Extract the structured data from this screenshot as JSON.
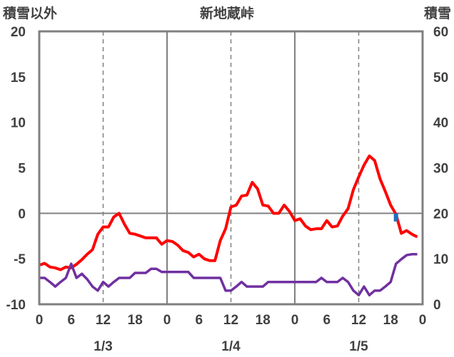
{
  "chart_data": {
    "type": "line",
    "title": "新地蔵峠",
    "ylabel_left": "積雪以外",
    "ylabel_right": "積雪",
    "ylim_left": [
      -10,
      20
    ],
    "ylim_right": [
      0,
      60
    ],
    "yticks_left": [
      20,
      15,
      10,
      5,
      0,
      -5,
      -10
    ],
    "yticks_right": [
      60,
      50,
      40,
      30,
      20,
      10,
      0
    ],
    "xlim_hours": [
      0,
      72
    ],
    "xticks": [
      {
        "hour": 0,
        "label": "0"
      },
      {
        "hour": 6,
        "label": "6"
      },
      {
        "hour": 12,
        "label": "12"
      },
      {
        "hour": 18,
        "label": "18"
      },
      {
        "hour": 24,
        "label": "0"
      },
      {
        "hour": 30,
        "label": "6"
      },
      {
        "hour": 36,
        "label": "12"
      },
      {
        "hour": 42,
        "label": "18"
      },
      {
        "hour": 48,
        "label": "0"
      },
      {
        "hour": 54,
        "label": "6"
      },
      {
        "hour": 60,
        "label": "12"
      },
      {
        "hour": 66,
        "label": "18"
      },
      {
        "hour": 72,
        "label": "0"
      }
    ],
    "date_labels": [
      {
        "hour": 12,
        "label": "1/3"
      },
      {
        "hour": 36,
        "label": "1/4"
      },
      {
        "hour": 60,
        "label": "1/5"
      }
    ],
    "grid": {
      "solid_vertical_hours": [
        24,
        48
      ],
      "dashed_vertical_hours": [
        12,
        36,
        60
      ],
      "zero_line_left": 0
    },
    "series": [
      {
        "axis": "left",
        "kind": "line",
        "color": "#ff0000",
        "x_start_hour": 0,
        "values": [
          -5.7,
          -5.5,
          -5.9,
          -6.0,
          -6.2,
          -5.9,
          -6.0,
          -5.6,
          -5.1,
          -4.5,
          -4.0,
          -2.3,
          -1.5,
          -1.5,
          -0.4,
          0.0,
          -1.2,
          -2.2,
          -2.3,
          -2.5,
          -2.7,
          -2.7,
          -2.7,
          -3.4,
          -3.0,
          -3.1,
          -3.5,
          -4.1,
          -4.3,
          -4.8,
          -4.5,
          -5.0,
          -5.2,
          -5.2,
          -3.0,
          -1.7,
          0.7,
          0.9,
          1.9,
          2.0,
          3.4,
          2.7,
          0.9,
          0.8,
          0.0,
          0.0,
          0.9,
          0.2,
          -0.8,
          -0.6,
          -1.4,
          -1.8,
          -1.7,
          -1.7,
          -0.8,
          -1.5,
          -1.4,
          -0.3,
          0.5,
          2.6,
          4.0,
          5.3,
          6.3,
          5.8,
          3.8,
          2.4,
          0.9,
          -0.1,
          -2.2,
          -1.9,
          -2.3,
          -2.6
        ]
      },
      {
        "axis": "right",
        "kind": "line",
        "color": "#7030a0",
        "x_start_hour": 0,
        "values": [
          5.8,
          5.8,
          4.9,
          3.9,
          4.9,
          5.8,
          8.9,
          5.8,
          6.7,
          5.5,
          3.9,
          3.0,
          4.9,
          3.9,
          4.9,
          5.8,
          5.8,
          5.8,
          6.9,
          6.9,
          6.9,
          7.8,
          7.8,
          7.1,
          7.1,
          7.1,
          7.1,
          7.1,
          7.1,
          5.8,
          5.8,
          5.8,
          5.8,
          5.8,
          5.8,
          3.0,
          3.0,
          3.9,
          4.9,
          3.9,
          3.9,
          3.9,
          3.9,
          4.9,
          4.9,
          4.9,
          4.9,
          4.9,
          4.9,
          4.9,
          4.9,
          4.9,
          4.9,
          5.8,
          4.9,
          4.9,
          4.9,
          5.8,
          4.9,
          3.0,
          2.0,
          3.9,
          2.0,
          3.0,
          3.0,
          3.9,
          4.9,
          8.9,
          9.9,
          10.8,
          11.0,
          11.0
        ]
      },
      {
        "axis": "left",
        "kind": "bar",
        "color": "#1f6fbf",
        "points": [
          {
            "hour": 67,
            "value": -0.9
          }
        ]
      }
    ]
  }
}
